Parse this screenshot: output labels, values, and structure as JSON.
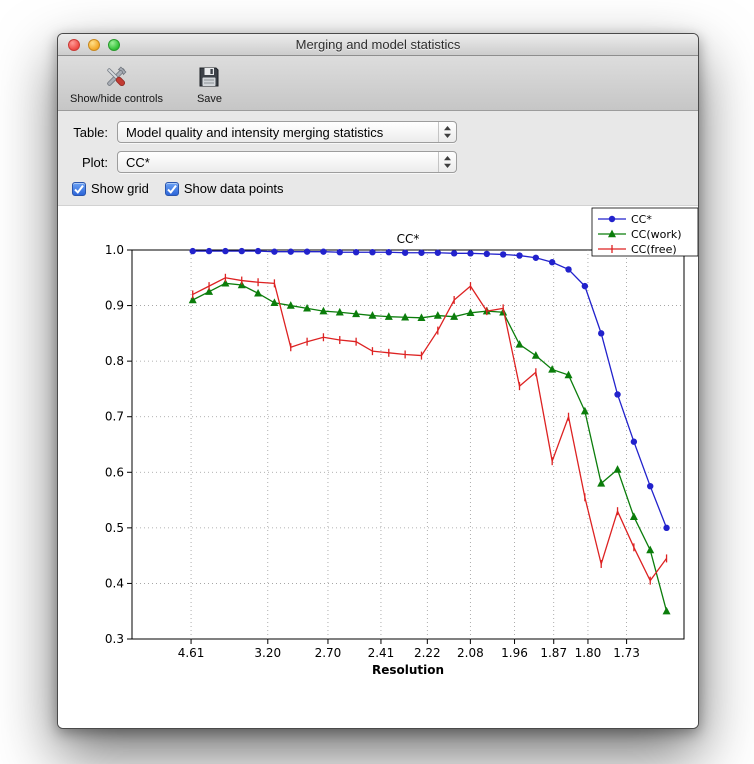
{
  "window": {
    "title": "Merging and model statistics"
  },
  "toolbar": {
    "buttons": [
      {
        "label": "Show/hide controls",
        "icon": "tools-icon"
      },
      {
        "label": "Save",
        "icon": "floppy-icon"
      }
    ]
  },
  "controls": {
    "table_label": "Table:",
    "table_value": "Model quality and intensity merging statistics",
    "plot_label": "Plot:",
    "plot_value": "CC*",
    "checkboxes": [
      {
        "label": "Show grid",
        "checked": true
      },
      {
        "label": "Show data points",
        "checked": true
      }
    ]
  },
  "chart_data": {
    "type": "line",
    "title": "CC*",
    "xlabel": "Resolution",
    "ylabel": "",
    "ylim": [
      0.3,
      1.0
    ],
    "yticks": [
      0.3,
      0.4,
      0.5,
      0.6,
      0.7,
      0.8,
      0.9,
      1.0
    ],
    "grid": true,
    "show_data_points": true,
    "legend_position": "upper right",
    "xticks": {
      "labels": [
        "4.61",
        "3.20",
        "2.70",
        "2.41",
        "2.22",
        "2.08",
        "1.96",
        "1.87",
        "1.80",
        "1.73"
      ],
      "fractions": [
        0.107,
        0.246,
        0.355,
        0.451,
        0.535,
        0.613,
        0.693,
        0.764,
        0.826,
        0.896
      ]
    },
    "x_start_fraction": 0.11,
    "x_step_fraction": 0.0296,
    "series": [
      {
        "name": "CC*",
        "color": "#2222cc",
        "marker": "circle",
        "values": [
          0.998,
          0.998,
          0.998,
          0.998,
          0.998,
          0.997,
          0.997,
          0.997,
          0.997,
          0.996,
          0.996,
          0.996,
          0.996,
          0.995,
          0.995,
          0.995,
          0.994,
          0.994,
          0.993,
          0.992,
          0.99,
          0.986,
          0.978,
          0.965,
          0.935,
          0.85,
          0.74,
          0.655,
          0.575,
          0.5
        ]
      },
      {
        "name": "CC(work)",
        "color": "#0b7d0b",
        "marker": "triangle",
        "values": [
          0.91,
          0.925,
          0.94,
          0.937,
          0.922,
          0.905,
          0.9,
          0.895,
          0.89,
          0.888,
          0.885,
          0.882,
          0.88,
          0.879,
          0.878,
          0.882,
          0.88,
          0.887,
          0.89,
          0.888,
          0.83,
          0.81,
          0.785,
          0.775,
          0.71,
          0.58,
          0.605,
          0.52,
          0.46,
          0.35
        ]
      },
      {
        "name": "CC(free)",
        "color": "#dd2222",
        "marker": "vline",
        "values": [
          0.92,
          0.935,
          0.95,
          0.945,
          0.942,
          0.94,
          0.825,
          0.835,
          0.843,
          0.838,
          0.835,
          0.818,
          0.815,
          0.812,
          0.81,
          0.855,
          0.91,
          0.935,
          0.89,
          0.895,
          0.755,
          0.78,
          0.62,
          0.7,
          0.555,
          0.435,
          0.53,
          0.465,
          0.405,
          0.445
        ]
      }
    ]
  }
}
